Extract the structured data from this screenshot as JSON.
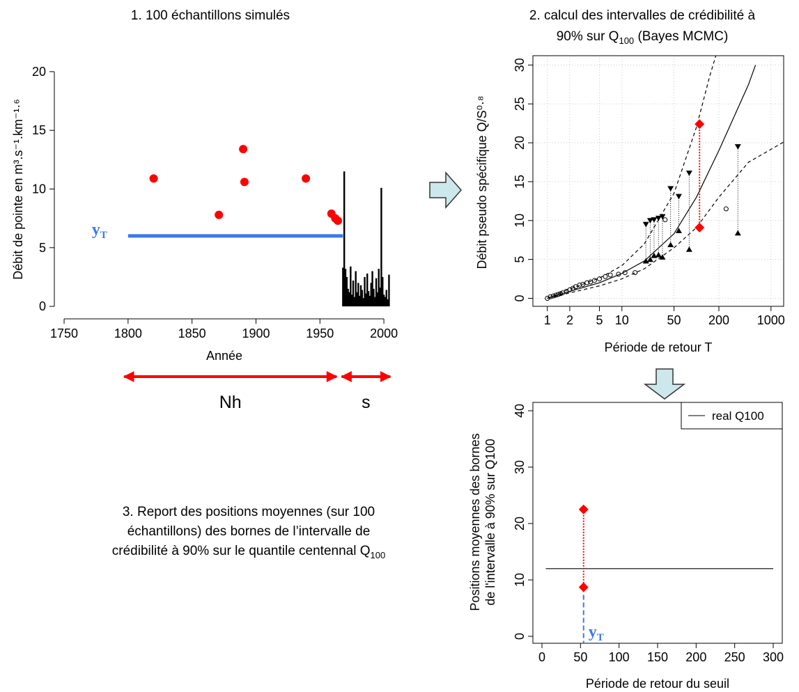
{
  "chart_data": [
    {
      "type": "scatter",
      "title": "1. 100 échantillons simulés",
      "xlabel": "Année",
      "ylabel": "Débit de pointe en m³.s⁻¹.km⁻¹·⁶",
      "xlim": [
        1738,
        2010.3
      ],
      "ylim": [
        -0.47,
        20.47
      ],
      "xticks": [
        1750,
        1800,
        1850,
        1900,
        1950,
        2000
      ],
      "yticks": [
        0,
        5,
        10,
        15,
        20
      ],
      "series": [
        {
          "type": "scatter",
          "color": "#ff0000",
          "x": [
            1820,
            1871,
            1890,
            1891,
            1939,
            1959,
            1962,
            1964
          ],
          "values": [
            10.9,
            7.8,
            13.4,
            10.6,
            10.9,
            7.9,
            7.5,
            7.3
          ]
        },
        {
          "type": "bar",
          "color": "#000000",
          "x": [
            1968,
            1969,
            1970,
            1971,
            1972,
            1973,
            1974,
            1975,
            1976,
            1977,
            1978,
            1979,
            1980,
            1981,
            1982,
            1983,
            1984,
            1985,
            1986,
            1987,
            1988,
            1989,
            1990,
            1991,
            1992,
            1993,
            1994,
            1995,
            1996,
            1997,
            1998,
            1999,
            2000,
            2001,
            2002,
            2003,
            2004
          ],
          "values": [
            3.3,
            11.5,
            3.2,
            2.5,
            1.5,
            1.2,
            3.4,
            1.0,
            2.2,
            0.8,
            3.0,
            1.2,
            2.0,
            0.9,
            1.8,
            1.4,
            0.7,
            2.5,
            1.1,
            2.8,
            1.3,
            0.9,
            2.0,
            3.0,
            1.5,
            0.8,
            2.4,
            1.2,
            3.2,
            1.6,
            10.1,
            2.5,
            1.0,
            0.8,
            1.4,
            0.6,
            2.7
          ]
        }
      ],
      "threshold": {
        "value": 6,
        "x": [
          1800,
          1968
        ],
        "label": "y",
        "label_sub": "T",
        "color": "#3c78f0"
      },
      "spans": [
        {
          "label": "Nh",
          "x": [
            1797,
            1963
          ]
        },
        {
          "label": "s",
          "x": [
            1967,
            2005
          ]
        }
      ],
      "span_color": "#ff0000"
    },
    {
      "type": "line",
      "title": [
        "2. calcul des intervalles de crédibilité à",
        "90% sur Q",
        "100",
        " (Bayes MCMC)"
      ],
      "xlabel": "Période de retour T",
      "ylabel": "Débit pseudo spécifique Q/S⁰·⁸",
      "xscale": "log",
      "xlim": [
        0.64,
        1480
      ],
      "ylim": [
        -1.03,
        31.2
      ],
      "xticks": [
        1,
        2,
        5,
        10,
        50,
        200,
        1000
      ],
      "yticks": [
        0,
        5,
        10,
        15,
        20,
        25,
        30
      ],
      "grid": true,
      "series": [
        {
          "type": "scatter",
          "marker": "circle-open",
          "color": "#000000",
          "x": [
            1.0,
            1.1,
            1.2,
            1.3,
            1.4,
            1.5,
            1.6,
            1.8,
            2.0,
            2.2,
            2.4,
            2.7,
            3.0,
            3.4,
            3.8,
            4.3,
            5,
            6,
            7,
            9,
            11,
            15,
            38,
            250
          ],
          "values": [
            0,
            0.2,
            0.3,
            0.4,
            0.5,
            0.6,
            0.7,
            0.9,
            1.1,
            1.3,
            1.5,
            1.7,
            1.8,
            2.0,
            2.1,
            2.3,
            2.5,
            2.8,
            3.0,
            3.1,
            3.3,
            3.3,
            10.1,
            11.5
          ]
        },
        {
          "type": "line",
          "dash": "solid",
          "color": "#000000",
          "x": [
            1,
            2,
            5,
            10,
            20,
            50,
            100,
            200,
            500,
            620
          ],
          "values": [
            0,
            0.9,
            2.0,
            3.2,
            4.8,
            8.3,
            13,
            19,
            27.5,
            30
          ]
        },
        {
          "type": "line",
          "dash": "dashed",
          "color": "#000000",
          "x": [
            1,
            2,
            5,
            10,
            20,
            50,
            100,
            150,
            182
          ],
          "values": [
            0,
            1.2,
            2.6,
            4.2,
            7,
            13.5,
            22,
            28.5,
            31.2
          ]
        },
        {
          "type": "line",
          "dash": "dashed",
          "color": "#000000",
          "x": [
            1,
            2,
            5,
            10,
            20,
            50,
            100,
            200,
            500,
            1480
          ],
          "values": [
            0,
            0.7,
            1.6,
            2.5,
            3.8,
            6.5,
            9.1,
            13,
            17.5,
            20.1
          ]
        }
      ],
      "bounds": {
        "color": "#000000",
        "x": [
          21,
          24,
          27,
          31,
          35,
          45,
          58,
          80,
          360
        ],
        "upper": [
          9.5,
          10.0,
          10.1,
          10.3,
          10.5,
          14.1,
          13.1,
          16.1,
          19.5
        ],
        "lower": [
          4.8,
          5.0,
          5.5,
          5.6,
          5.3,
          6.9,
          8.7,
          6.3,
          8.4
        ]
      },
      "interval": {
        "x": 110,
        "upper": 22.4,
        "lower": 9.1,
        "color": "#ff0000"
      }
    },
    {
      "type": "line",
      "xlabel": "Période de retour du seuil",
      "ylabel": [
        "Positions moyennes des bornes",
        "de l'intervalle à 90% sur Q100"
      ],
      "xlim": [
        -11.75,
        311.75
      ],
      "ylim": [
        -1.23,
        41.48
      ],
      "xticks": [
        0,
        50,
        100,
        150,
        200,
        250,
        300
      ],
      "yticks": [
        0,
        10,
        20,
        30,
        40
      ],
      "legend": "top-right",
      "series": [
        {
          "type": "line",
          "name": "real Q100",
          "color": "#000000",
          "x": [
            5,
            300
          ],
          "values": [
            12,
            12
          ]
        }
      ],
      "interval": {
        "x": 54,
        "upper": 22.5,
        "lower": 8.7,
        "color": "#ff0000"
      },
      "threshold": {
        "x": 54,
        "label": "y",
        "label_sub": "T",
        "color": "#3c78f0"
      },
      "caption": [
        "3. Report des positions moyennes (sur 100",
        "échantillons) des bornes de l’intervalle de",
        "crédibilité à 90% sur le quantile centennal Q",
        "100"
      ]
    }
  ]
}
